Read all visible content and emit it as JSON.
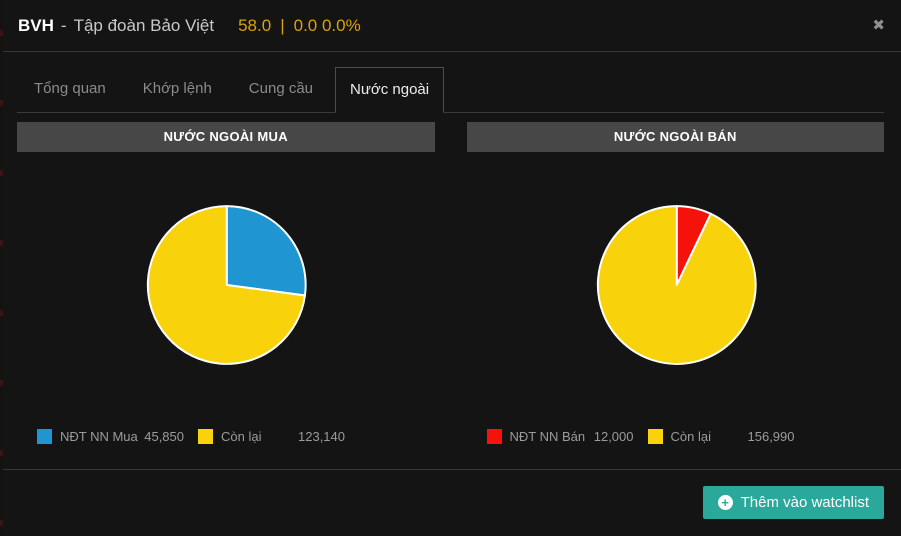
{
  "window": {
    "close_icon": "✖"
  },
  "header": {
    "symbol": "BVH",
    "dash": "-",
    "company": "Tập đoàn Bảo Việt",
    "price": "58.0",
    "pipe": "|",
    "change": "0.0 0.0%"
  },
  "tabs": [
    {
      "label": "Tổng quan",
      "active": false
    },
    {
      "label": "Khớp lệnh",
      "active": false
    },
    {
      "label": "Cung cầu",
      "active": false
    },
    {
      "label": "Nước ngoài",
      "active": true
    }
  ],
  "panels": [
    {
      "title": "NƯỚC NGOÀI MUA",
      "legend": [
        {
          "label": "NĐT NN Mua",
          "value": "45,850",
          "color": "#1f96d2"
        },
        {
          "label": "Còn lại",
          "value": "123,140",
          "color": "#f8d30c"
        }
      ]
    },
    {
      "title": "NƯỚC NGOÀI BÁN",
      "legend": [
        {
          "label": "NĐT NN Bán",
          "value": "12,000",
          "color": "#f4120b"
        },
        {
          "label": "Còn lại",
          "value": "156,990",
          "color": "#f8d30c"
        }
      ]
    }
  ],
  "chart_data": [
    {
      "type": "pie",
      "title": "NƯỚC NGOÀI MUA",
      "labels": [
        "NĐT NN Mua",
        "Còn lại"
      ],
      "values": [
        45850,
        123140
      ],
      "colors": [
        "#1f96d2",
        "#f8d30c"
      ],
      "start_angle_deg": 0,
      "direction": "clockwise",
      "stroke": "#ffffff",
      "legend_position": "bottom"
    },
    {
      "type": "pie",
      "title": "NƯỚC NGOÀI BÁN",
      "labels": [
        "NĐT NN Bán",
        "Còn lại"
      ],
      "values": [
        12000,
        156990
      ],
      "colors": [
        "#f4120b",
        "#f8d30c"
      ],
      "start_angle_deg": 0,
      "direction": "clockwise",
      "stroke": "#ffffff",
      "legend_position": "bottom"
    }
  ],
  "footer": {
    "watchlist_button": "Thêm vào watchlist",
    "plus_icon": "+"
  },
  "colors": {
    "background": "#141414",
    "panel_header_bg": "#474747",
    "price_yellow": "#dba10a",
    "accent_teal": "#2aa89b",
    "divider": "#363636"
  }
}
